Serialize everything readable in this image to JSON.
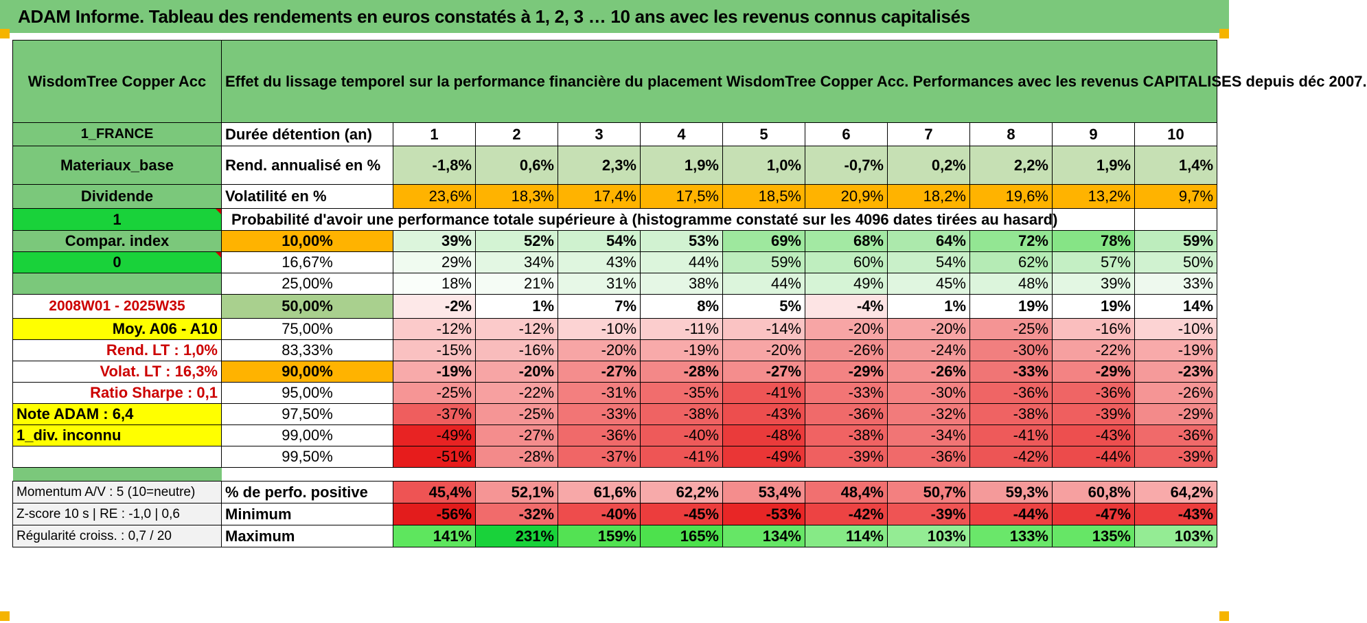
{
  "title": "ADAM Informe. Tableau des rendements en euros constatés à 1, 2, 3 … 10 ans avec les revenus connus capitalisés",
  "header": {
    "fund_name": "WisdomTree Copper Acc",
    "description": "Effet du lissage temporel sur la performance financière du placement WisdomTree Copper Acc. Performances avec les revenus CAPITALISES depuis déc 2007."
  },
  "left_panel": {
    "country": "1_FRANCE",
    "sector": "Materiaux_base",
    "dividend_label": "Dividende",
    "dividend_value": "1",
    "compar_index": "Compar. index",
    "compar_value": "0",
    "period": "2008W01 - 2025W35",
    "moy": "Moy. A06 - A10",
    "rend_lt": "Rend. LT :   1,0%",
    "volat_lt": "Volat. LT :   16,3%",
    "sharpe": "Ratio Sharpe :   0,1",
    "note_adam": "Note ADAM : 6,4",
    "div_inconnu": "1_div. inconnu",
    "momentum": "Momentum A/V : 5 (10=neutre)",
    "zscore": "Z-score 10 s | RE : -1,0 | 0,6",
    "regularite": "Régularité croiss. : 0,7 / 20"
  },
  "durations": {
    "label": "Durée détention (an)",
    "values": [
      "1",
      "2",
      "3",
      "4",
      "5",
      "6",
      "7",
      "8",
      "9",
      "10"
    ]
  },
  "rend": {
    "label": "Rend. annualisé en %",
    "values": [
      "-1,8%",
      "0,6%",
      "2,3%",
      "1,9%",
      "1,0%",
      "-0,7%",
      "0,2%",
      "2,2%",
      "1,9%",
      "1,4%"
    ]
  },
  "vol": {
    "label": "Volatilité en %",
    "values": [
      "23,6%",
      "18,3%",
      "17,4%",
      "17,5%",
      "18,5%",
      "20,9%",
      "18,2%",
      "19,6%",
      "13,2%",
      "9,7%"
    ]
  },
  "prob_header": "Probabilité d'avoir une performance totale supérieure à (histogramme constaté sur les 4096 dates tirées au hasard)",
  "quantiles": [
    {
      "level": "10,00%",
      "values": [
        "39%",
        "52%",
        "54%",
        "53%",
        "69%",
        "68%",
        "64%",
        "72%",
        "78%",
        "59%"
      ]
    },
    {
      "level": "16,67%",
      "values": [
        "29%",
        "34%",
        "43%",
        "44%",
        "59%",
        "60%",
        "54%",
        "62%",
        "57%",
        "50%"
      ]
    },
    {
      "level": "25,00%",
      "values": [
        "18%",
        "21%",
        "31%",
        "38%",
        "44%",
        "49%",
        "45%",
        "48%",
        "39%",
        "33%"
      ]
    },
    {
      "level": "50,00%",
      "values": [
        "-2%",
        "1%",
        "7%",
        "8%",
        "5%",
        "-4%",
        "1%",
        "19%",
        "19%",
        "14%"
      ]
    },
    {
      "level": "75,00%",
      "values": [
        "-12%",
        "-12%",
        "-10%",
        "-11%",
        "-14%",
        "-20%",
        "-20%",
        "-25%",
        "-16%",
        "-10%"
      ]
    },
    {
      "level": "83,33%",
      "values": [
        "-15%",
        "-16%",
        "-20%",
        "-19%",
        "-20%",
        "-26%",
        "-24%",
        "-30%",
        "-22%",
        "-19%"
      ]
    },
    {
      "level": "90,00%",
      "values": [
        "-19%",
        "-20%",
        "-27%",
        "-28%",
        "-27%",
        "-29%",
        "-26%",
        "-33%",
        "-29%",
        "-23%"
      ]
    },
    {
      "level": "95,00%",
      "values": [
        "-25%",
        "-22%",
        "-31%",
        "-35%",
        "-41%",
        "-33%",
        "-30%",
        "-36%",
        "-36%",
        "-26%"
      ]
    },
    {
      "level": "97,50%",
      "values": [
        "-37%",
        "-25%",
        "-33%",
        "-38%",
        "-43%",
        "-36%",
        "-32%",
        "-38%",
        "-39%",
        "-29%"
      ]
    },
    {
      "level": "99,00%",
      "values": [
        "-49%",
        "-27%",
        "-36%",
        "-40%",
        "-48%",
        "-38%",
        "-34%",
        "-41%",
        "-43%",
        "-36%"
      ]
    },
    {
      "level": "99,50%",
      "values": [
        "-51%",
        "-28%",
        "-37%",
        "-41%",
        "-49%",
        "-39%",
        "-36%",
        "-42%",
        "-44%",
        "-39%"
      ]
    }
  ],
  "stats": [
    {
      "label": "% de perfo. positive",
      "values": [
        "45,4%",
        "52,1%",
        "61,6%",
        "62,2%",
        "53,4%",
        "48,4%",
        "50,7%",
        "59,3%",
        "60,8%",
        "64,2%"
      ]
    },
    {
      "label": "Minimum",
      "values": [
        "-56%",
        "-32%",
        "-40%",
        "-45%",
        "-53%",
        "-42%",
        "-39%",
        "-44%",
        "-47%",
        "-43%"
      ]
    },
    {
      "label": "Maximum",
      "values": [
        "141%",
        "231%",
        "159%",
        "165%",
        "134%",
        "114%",
        "103%",
        "133%",
        "135%",
        "103%"
      ]
    }
  ],
  "colors": {
    "title_green": "#7bc87b",
    "bright_green": "#19d23a",
    "yellow": "#ffff00",
    "orange": "#ffb300",
    "red_text": "#cc0000"
  }
}
